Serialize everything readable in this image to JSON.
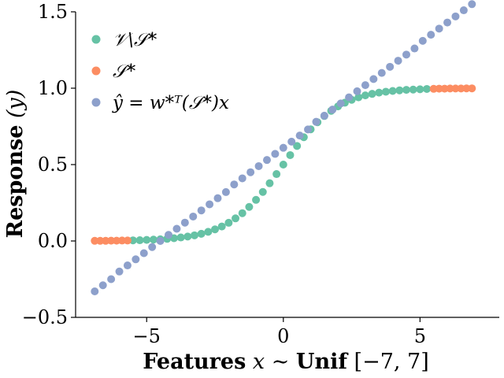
{
  "chart_data": {
    "type": "scatter",
    "xlabel": {
      "bold1": "Features",
      "mid": " x ∼ ",
      "bold2": "Unif",
      "tail": " [−7, 7]"
    },
    "ylabel": {
      "bold": "Response",
      "tail": " (y)"
    },
    "xlim": [
      -7.6,
      7.9
    ],
    "ylim": [
      -0.5,
      1.5
    ],
    "xticks": [
      {
        "value": -5,
        "label": "−5"
      },
      {
        "value": 0,
        "label": "0"
      },
      {
        "value": 5,
        "label": "5"
      }
    ],
    "yticks": [
      {
        "value": -0.5,
        "label": "−0.5"
      },
      {
        "value": 0.0,
        "label": "0.0"
      },
      {
        "value": 0.5,
        "label": "0.5"
      },
      {
        "value": 1.0,
        "label": "1.0"
      },
      {
        "value": 1.5,
        "label": "1.5"
      }
    ],
    "grid": false,
    "legend_placement": "top-left",
    "series": [
      {
        "name": "𝒱\\𝒮*",
        "color": "#66c2a5",
        "x": [
          -5.5,
          -5.25,
          -5.0,
          -4.75,
          -4.5,
          -4.25,
          -4.0,
          -3.75,
          -3.5,
          -3.25,
          -3.0,
          -2.75,
          -2.5,
          -2.25,
          -2.0,
          -1.75,
          -1.5,
          -1.25,
          -1.0,
          -0.75,
          -0.5,
          -0.25,
          0.0,
          0.25,
          0.5,
          0.75,
          1.0,
          1.25,
          1.5,
          1.75,
          2.0,
          2.25,
          2.5,
          2.75,
          3.0,
          3.25,
          3.5,
          3.75,
          4.0,
          4.25,
          4.5,
          4.75,
          5.0,
          5.25
        ],
        "y": [
          0.004,
          0.005,
          0.007,
          0.009,
          0.011,
          0.014,
          0.018,
          0.023,
          0.029,
          0.037,
          0.047,
          0.06,
          0.076,
          0.095,
          0.119,
          0.148,
          0.182,
          0.223,
          0.269,
          0.321,
          0.378,
          0.438,
          0.5,
          0.562,
          0.622,
          0.679,
          0.731,
          0.777,
          0.818,
          0.852,
          0.881,
          0.905,
          0.924,
          0.94,
          0.953,
          0.963,
          0.971,
          0.977,
          0.982,
          0.986,
          0.989,
          0.991,
          0.993,
          0.995
        ]
      },
      {
        "name": "𝒮*",
        "color": "#fc8d62",
        "x": [
          -6.9,
          -6.7,
          -6.5,
          -6.3,
          -6.1,
          -5.9,
          -5.7,
          5.5,
          5.7,
          5.9,
          6.1,
          6.3,
          6.5,
          6.7,
          6.9
        ],
        "y": [
          0.001,
          0.001,
          0.001,
          0.002,
          0.002,
          0.003,
          0.003,
          0.996,
          0.997,
          0.997,
          0.998,
          0.998,
          0.998,
          0.999,
          0.999
        ]
      },
      {
        "name": "ŷ = w*ᵀ(𝒮*)x",
        "color": "#8da0cb",
        "x": [
          -6.9,
          -6.6,
          -6.3,
          -6.0,
          -5.7,
          -5.4,
          -5.1,
          -4.8,
          -4.5,
          -4.2,
          -3.9,
          -3.6,
          -3.3,
          -3.0,
          -2.7,
          -2.4,
          -2.1,
          -1.8,
          -1.5,
          -1.2,
          -0.9,
          -0.6,
          -0.3,
          0.0,
          0.3,
          0.6,
          0.9,
          1.2,
          1.5,
          1.8,
          2.1,
          2.4,
          2.7,
          3.0,
          3.3,
          3.6,
          3.9,
          4.2,
          4.5,
          4.8,
          5.1,
          5.4,
          5.7,
          6.0,
          6.3,
          6.6,
          6.9
        ],
        "y": [
          -0.33,
          -0.29,
          -0.25,
          -0.2,
          -0.16,
          -0.12,
          -0.08,
          -0.04,
          0.0,
          0.04,
          0.08,
          0.12,
          0.16,
          0.2,
          0.24,
          0.28,
          0.32,
          0.37,
          0.41,
          0.45,
          0.49,
          0.53,
          0.57,
          0.61,
          0.65,
          0.69,
          0.73,
          0.78,
          0.82,
          0.86,
          0.9,
          0.94,
          0.98,
          1.02,
          1.06,
          1.1,
          1.14,
          1.18,
          1.22,
          1.26,
          1.31,
          1.35,
          1.39,
          1.43,
          1.47,
          1.51,
          1.55
        ]
      }
    ]
  }
}
